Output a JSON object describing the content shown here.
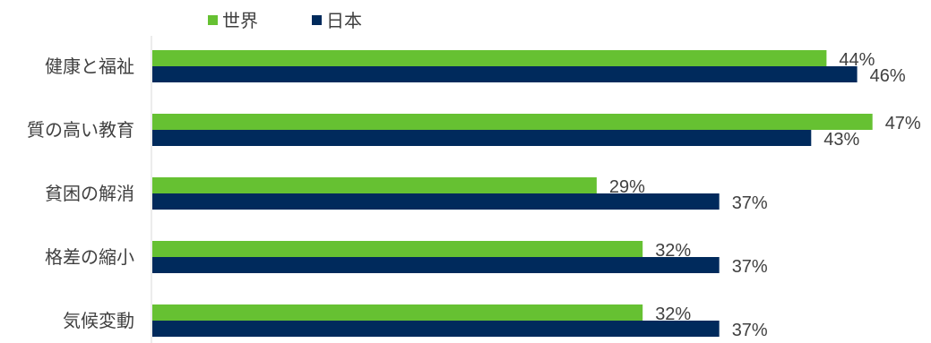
{
  "chart_data": {
    "type": "bar",
    "orientation": "horizontal",
    "categories": [
      "健康と福祉",
      "質の高い教育",
      "貧困の解消",
      "格差の縮小",
      "気候変動"
    ],
    "series": [
      {
        "name": "世界",
        "color": "#66c132",
        "values": [
          44,
          47,
          29,
          32,
          32
        ],
        "labels": [
          "44%",
          "47%",
          "29%",
          "32%",
          "32%"
        ]
      },
      {
        "name": "日本",
        "color": "#002a5c",
        "values": [
          46,
          43,
          37,
          37,
          37
        ],
        "labels": [
          "46%",
          "43%",
          "37%",
          "37%",
          "37%"
        ]
      }
    ],
    "value_unit": "%",
    "xlim": [
      0,
      50
    ],
    "legend_position": "top-left",
    "grid": false,
    "title": "",
    "xlabel": "",
    "ylabel": ""
  }
}
